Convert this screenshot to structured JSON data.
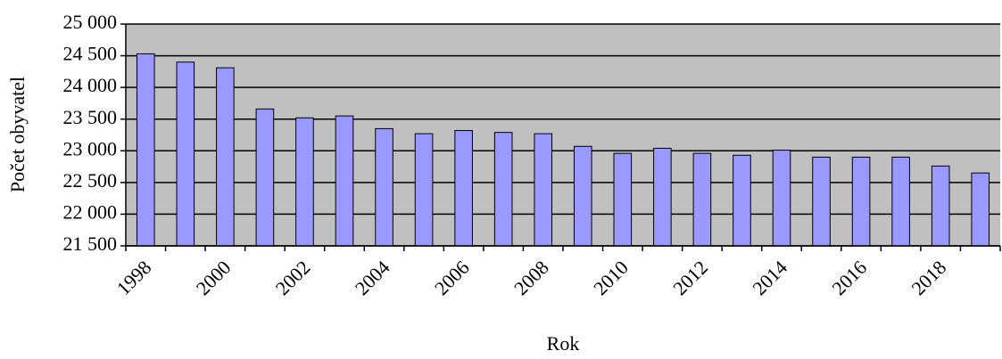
{
  "chart_data": {
    "type": "bar",
    "y_label": "Počet obyvatel",
    "x_label": "Rok",
    "categories": [
      "1998",
      null,
      "2000",
      null,
      "2002",
      null,
      "2004",
      null,
      "2006",
      null,
      "2008",
      null,
      "2010",
      null,
      "2012",
      null,
      "2014",
      null,
      "2016",
      null,
      "2018",
      null
    ],
    "values": [
      24530,
      24400,
      24310,
      23660,
      23520,
      23550,
      23350,
      23270,
      23320,
      23290,
      23270,
      23070,
      22960,
      23040,
      22960,
      22930,
      23010,
      22900,
      22900,
      22900,
      22760,
      22650
    ],
    "color": "#9999ff",
    "ylim": [
      21500,
      25000
    ],
    "yticks": [
      {
        "value": 21500,
        "label": "21 500"
      },
      {
        "value": 22000,
        "label": "22 000"
      },
      {
        "value": 22500,
        "label": "22 500"
      },
      {
        "value": 23000,
        "label": "23 000"
      },
      {
        "value": 23500,
        "label": "23 500"
      },
      {
        "value": 24000,
        "label": "24 000"
      },
      {
        "value": 24500,
        "label": "24 500"
      },
      {
        "value": 25000,
        "label": "25 000"
      }
    ],
    "grid": true
  }
}
